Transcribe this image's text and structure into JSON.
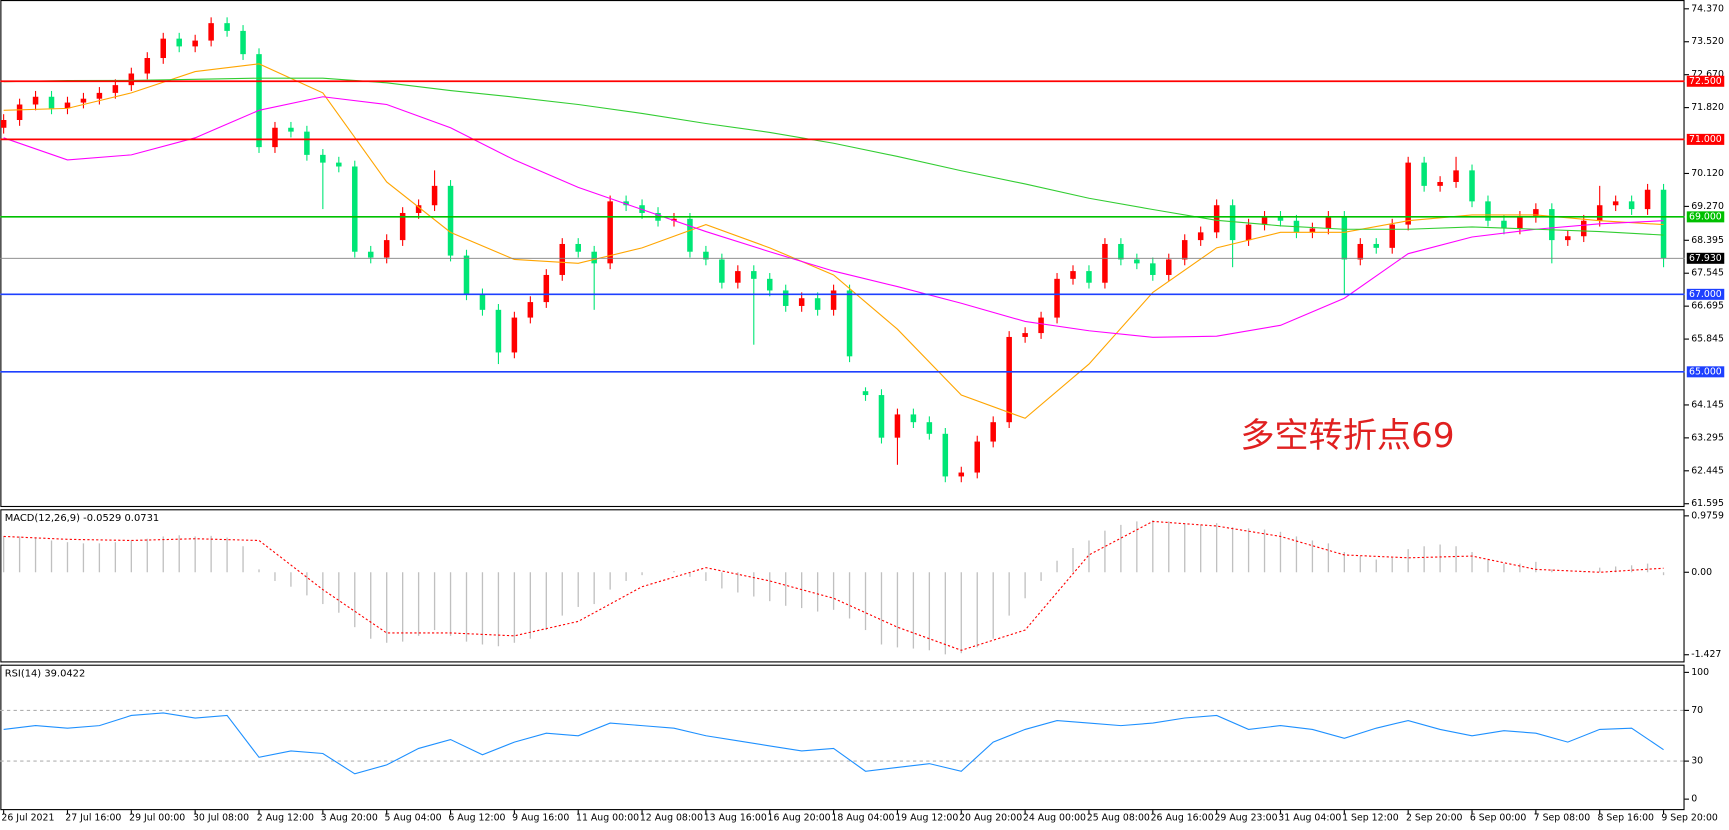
{
  "chart_data": [
    {
      "type": "candlestick",
      "ylim": [
        61.595,
        74.37
      ],
      "yticks": [
        {
          "value": 74.37,
          "label": "74.370"
        },
        {
          "value": 73.52,
          "label": "73.520"
        },
        {
          "value": 72.67,
          "label": "72.670"
        },
        {
          "value": 71.82,
          "label": "71.820"
        },
        {
          "value": 70.12,
          "label": "70.120"
        },
        {
          "value": 69.27,
          "label": "69.270"
        },
        {
          "value": 68.395,
          "label": "68.395"
        },
        {
          "value": 67.545,
          "label": "67.545"
        },
        {
          "value": 66.695,
          "label": "66.695"
        },
        {
          "value": 65.845,
          "label": "65.845"
        },
        {
          "value": 64.145,
          "label": "64.145"
        },
        {
          "value": 63.295,
          "label": "63.295"
        },
        {
          "value": 62.445,
          "label": "62.445"
        },
        {
          "value": 61.595,
          "label": "61.595"
        }
      ],
      "up_color": "#ff0000",
      "down_color": "#00e676",
      "open": [
        71.3,
        71.5,
        71.9,
        72.1,
        71.8,
        71.95,
        72.05,
        72.2,
        72.4,
        72.7,
        73.1,
        73.6,
        73.4,
        73.55,
        74.0,
        73.8,
        73.2,
        70.8,
        71.3,
        71.2,
        70.6,
        70.4,
        70.3,
        68.1,
        67.95,
        68.4,
        69.1,
        69.3,
        69.8,
        68.0,
        67.0,
        66.6,
        65.5,
        66.4,
        66.8,
        67.5,
        68.3,
        68.1,
        67.8,
        69.4,
        69.3,
        69.1,
        68.9,
        68.95,
        68.1,
        67.9,
        67.3,
        67.6,
        67.4,
        67.1,
        66.7,
        66.9,
        66.6,
        67.1,
        64.5,
        64.4,
        63.3,
        63.9,
        63.7,
        63.4,
        62.3,
        62.4,
        63.2,
        63.7,
        65.9,
        66.0,
        66.4,
        67.4,
        67.6,
        67.3,
        68.3,
        67.9,
        67.8,
        67.5,
        67.9,
        68.4,
        68.6,
        69.3,
        68.4,
        68.8,
        69.0,
        68.9,
        68.6,
        68.7,
        69.0,
        67.9,
        68.3,
        68.2,
        68.8,
        70.4,
        69.8,
        69.9,
        70.2,
        69.4,
        68.9,
        68.7,
        69.0,
        69.2,
        68.4,
        68.5,
        68.9,
        69.3,
        69.4,
        69.2,
        69.7
      ],
      "high": [
        71.65,
        72.05,
        72.25,
        72.25,
        72.1,
        72.2,
        72.35,
        72.55,
        72.85,
        73.25,
        73.75,
        73.75,
        73.7,
        74.15,
        74.15,
        73.95,
        73.35,
        71.45,
        71.45,
        71.35,
        70.75,
        70.55,
        70.45,
        68.25,
        68.55,
        69.25,
        69.45,
        70.2,
        69.95,
        68.15,
        67.15,
        66.75,
        66.55,
        66.95,
        67.65,
        68.45,
        68.45,
        68.25,
        69.55,
        69.55,
        69.45,
        69.25,
        69.1,
        69.1,
        68.25,
        68.05,
        67.75,
        67.75,
        67.55,
        67.25,
        67.05,
        67.05,
        67.25,
        67.25,
        64.6,
        64.55,
        64.05,
        64.05,
        63.85,
        63.55,
        62.55,
        63.35,
        63.85,
        66.05,
        66.15,
        66.55,
        67.55,
        67.75,
        67.75,
        68.45,
        68.45,
        68.05,
        67.95,
        68.05,
        68.55,
        68.75,
        69.45,
        69.45,
        68.95,
        69.15,
        69.15,
        69.05,
        68.85,
        69.15,
        69.15,
        68.45,
        68.45,
        68.95,
        70.55,
        70.55,
        70.05,
        70.55,
        70.35,
        69.55,
        69.05,
        69.15,
        69.35,
        69.35,
        68.65,
        69.05,
        69.8,
        69.55,
        69.55,
        69.85,
        69.85
      ],
      "low": [
        71.15,
        71.35,
        71.75,
        71.65,
        71.65,
        71.8,
        71.9,
        72.05,
        72.25,
        72.55,
        72.95,
        73.25,
        73.25,
        73.4,
        73.65,
        73.05,
        70.65,
        70.65,
        71.05,
        70.45,
        69.2,
        70.15,
        67.95,
        67.8,
        67.8,
        68.25,
        68.95,
        69.15,
        67.85,
        66.85,
        66.45,
        65.2,
        65.35,
        66.25,
        66.65,
        67.35,
        67.95,
        66.6,
        67.65,
        69.15,
        68.95,
        68.75,
        68.75,
        67.95,
        67.75,
        67.15,
        67.15,
        65.7,
        66.95,
        66.55,
        66.55,
        66.45,
        66.45,
        65.25,
        64.25,
        63.15,
        62.6,
        63.55,
        63.25,
        62.15,
        62.15,
        62.25,
        63.05,
        63.55,
        65.75,
        65.85,
        66.25,
        67.25,
        67.15,
        67.15,
        67.75,
        67.65,
        67.35,
        67.35,
        67.75,
        68.25,
        68.45,
        67.7,
        68.25,
        68.65,
        68.75,
        68.45,
        68.45,
        68.55,
        67.0,
        67.75,
        68.05,
        68.05,
        68.65,
        69.65,
        69.65,
        69.75,
        69.25,
        68.75,
        68.55,
        68.55,
        68.85,
        67.8,
        68.25,
        68.35,
        68.75,
        69.15,
        69.05,
        69.05,
        67.7
      ],
      "close": [
        71.5,
        71.9,
        72.1,
        71.8,
        71.95,
        72.05,
        72.2,
        72.4,
        72.7,
        73.1,
        73.6,
        73.4,
        73.55,
        74.0,
        73.8,
        73.2,
        70.8,
        71.3,
        71.2,
        70.6,
        70.4,
        70.3,
        68.1,
        67.95,
        68.4,
        69.1,
        69.3,
        69.8,
        68.0,
        67.0,
        66.6,
        65.5,
        66.4,
        66.8,
        67.5,
        68.3,
        68.1,
        67.8,
        69.4,
        69.3,
        69.1,
        68.9,
        68.95,
        68.1,
        67.9,
        67.3,
        67.6,
        67.4,
        67.1,
        66.7,
        66.9,
        66.6,
        67.1,
        65.4,
        64.4,
        63.3,
        63.9,
        63.7,
        63.4,
        62.3,
        62.4,
        63.2,
        63.7,
        65.9,
        66.0,
        66.4,
        67.4,
        67.6,
        67.3,
        68.3,
        67.9,
        67.8,
        67.5,
        67.9,
        68.4,
        68.6,
        69.3,
        68.4,
        68.8,
        69.0,
        68.9,
        68.6,
        68.7,
        69.0,
        67.9,
        68.3,
        68.2,
        68.8,
        70.4,
        69.8,
        69.9,
        70.2,
        69.4,
        68.9,
        68.7,
        69.0,
        69.2,
        68.4,
        68.5,
        68.9,
        69.3,
        69.4,
        69.2,
        69.7,
        67.93
      ],
      "series": [
        {
          "color": "#ffa500",
          "values": [
            71.75,
            71.8,
            72.2,
            72.75,
            72.95,
            72.2,
            69.9,
            68.6,
            67.9,
            67.8,
            68.2,
            68.8,
            68.2,
            67.5,
            66.1,
            64.4,
            63.8,
            65.2,
            67.05,
            68.2,
            68.6,
            68.6,
            68.9,
            69.05,
            69.05,
            68.9,
            68.8
          ]
        },
        {
          "color": "#ff00ff",
          "values": [
            71.04,
            70.47,
            70.6,
            71.04,
            71.75,
            72.1,
            71.9,
            71.3,
            70.47,
            69.76,
            69.19,
            68.62,
            68.1,
            67.6,
            67.2,
            66.77,
            66.3,
            66.06,
            65.89,
            65.92,
            66.2,
            66.9,
            68.05,
            68.48,
            68.68,
            68.82,
            68.9
          ]
        },
        {
          "color": "#32cd32",
          "values": [
            72.49,
            72.52,
            72.52,
            72.55,
            72.58,
            72.58,
            72.46,
            72.26,
            72.09,
            71.9,
            71.67,
            71.41,
            71.18,
            70.9,
            70.56,
            70.19,
            69.85,
            69.48,
            69.19,
            68.91,
            68.77,
            68.68,
            68.68,
            68.74,
            68.68,
            68.62,
            68.53
          ]
        }
      ],
      "levels": [
        {
          "value": 72.5,
          "label": "72.500",
          "color": "#ff0000"
        },
        {
          "value": 71.0,
          "label": "71.000",
          "color": "#ff0000"
        },
        {
          "value": 69.0,
          "label": "69.000",
          "color": "#00c000"
        },
        {
          "value": 67.0,
          "label": "67.000",
          "color": "#1e40ff"
        },
        {
          "value": 65.0,
          "label": "65.000",
          "color": "#1e40ff"
        }
      ],
      "price_line": {
        "value": 67.93,
        "label": "67.930",
        "color": "#808080"
      },
      "annotation": "多空转折点69",
      "annotation_color": "#e02020"
    },
    {
      "type": "macd",
      "title": "MACD(12,26,9) -0.0529 0.0731",
      "ylim": [
        -1.427,
        0.9759
      ],
      "yticks": [
        0.9759,
        {
          "value": 0,
          "label": "0.00"
        },
        -1.427
      ],
      "histogram_color": "#c0c0c0",
      "signal_color": "#ff0000",
      "histogram": [
        0.62,
        0.62,
        0.6,
        0.55,
        0.52,
        0.5,
        0.5,
        0.52,
        0.55,
        0.58,
        0.62,
        0.64,
        0.62,
        0.63,
        0.6,
        0.45,
        0.05,
        -0.15,
        -0.25,
        -0.4,
        -0.55,
        -0.7,
        -0.95,
        -1.15,
        -1.22,
        -1.2,
        -1.1,
        -1.0,
        -1.1,
        -1.2,
        -1.25,
        -1.28,
        -1.22,
        -1.15,
        -1.0,
        -0.75,
        -0.6,
        -0.55,
        -0.3,
        -0.15,
        -0.05,
        0.0,
        0.02,
        -0.08,
        -0.15,
        -0.28,
        -0.35,
        -0.42,
        -0.5,
        -0.58,
        -0.62,
        -0.68,
        -0.65,
        -0.8,
        -1.0,
        -1.25,
        -1.3,
        -1.32,
        -1.35,
        -1.42,
        -1.4,
        -1.3,
        -1.15,
        -0.75,
        -0.45,
        -0.15,
        0.2,
        0.42,
        0.55,
        0.72,
        0.82,
        0.88,
        0.9,
        0.88,
        0.85,
        0.82,
        0.85,
        0.78,
        0.76,
        0.74,
        0.7,
        0.62,
        0.55,
        0.5,
        0.35,
        0.28,
        0.22,
        0.25,
        0.4,
        0.45,
        0.48,
        0.45,
        0.35,
        0.22,
        0.15,
        0.15,
        0.18,
        0.05,
        0.0,
        0.02,
        0.08,
        0.1,
        0.12,
        0.15,
        -0.05
      ],
      "signal": [
        0.62,
        0.57,
        0.55,
        0.58,
        0.55,
        -0.3,
        -1.05,
        -1.05,
        -1.1,
        -0.85,
        -0.25,
        0.08,
        -0.15,
        -0.45,
        -0.95,
        -1.35,
        -1.0,
        0.3,
        0.88,
        0.8,
        0.62,
        0.3,
        0.25,
        0.28,
        0.05,
        0.0,
        0.07
      ]
    },
    {
      "type": "line",
      "title": "RSI(14) 39.0422",
      "ylim": [
        0,
        100
      ],
      "yticks": [
        0,
        30,
        70,
        100
      ],
      "levels": [
        30,
        70
      ],
      "color": "#1e90ff",
      "values": [
        55,
        58,
        56,
        58,
        66,
        68,
        64,
        66,
        33,
        38,
        36,
        20,
        27,
        40,
        47,
        35,
        45,
        52,
        50,
        60,
        58,
        56,
        50,
        46,
        42,
        38,
        40,
        22,
        25,
        28,
        22,
        45,
        55,
        62,
        60,
        58,
        60,
        64,
        66,
        55,
        58,
        55,
        48,
        56,
        62,
        55,
        50,
        54,
        52,
        45,
        55,
        56,
        39.04
      ],
      "x_labels": [
        "26 Jul 2021",
        "27 Jul 16:00",
        "29 Jul 00:00",
        "30 Jul 08:00",
        "2 Aug 12:00",
        "3 Aug 20:00",
        "5 Aug 04:00",
        "6 Aug 12:00",
        "9 Aug 16:00",
        "11 Aug 00:00",
        "12 Aug 08:00",
        "13 Aug 16:00",
        "16 Aug 20:00",
        "18 Aug 04:00",
        "19 Aug 12:00",
        "20 Aug 20:00",
        "24 Aug 00:00",
        "25 Aug 08:00",
        "26 Aug 16:00",
        "29 Aug 23:00",
        "31 Aug 04:00",
        "1 Sep 12:00",
        "2 Sep 20:00",
        "6 Sep 00:00",
        "7 Sep 08:00",
        "8 Sep 16:00",
        "9 Sep 20:00"
      ]
    }
  ]
}
